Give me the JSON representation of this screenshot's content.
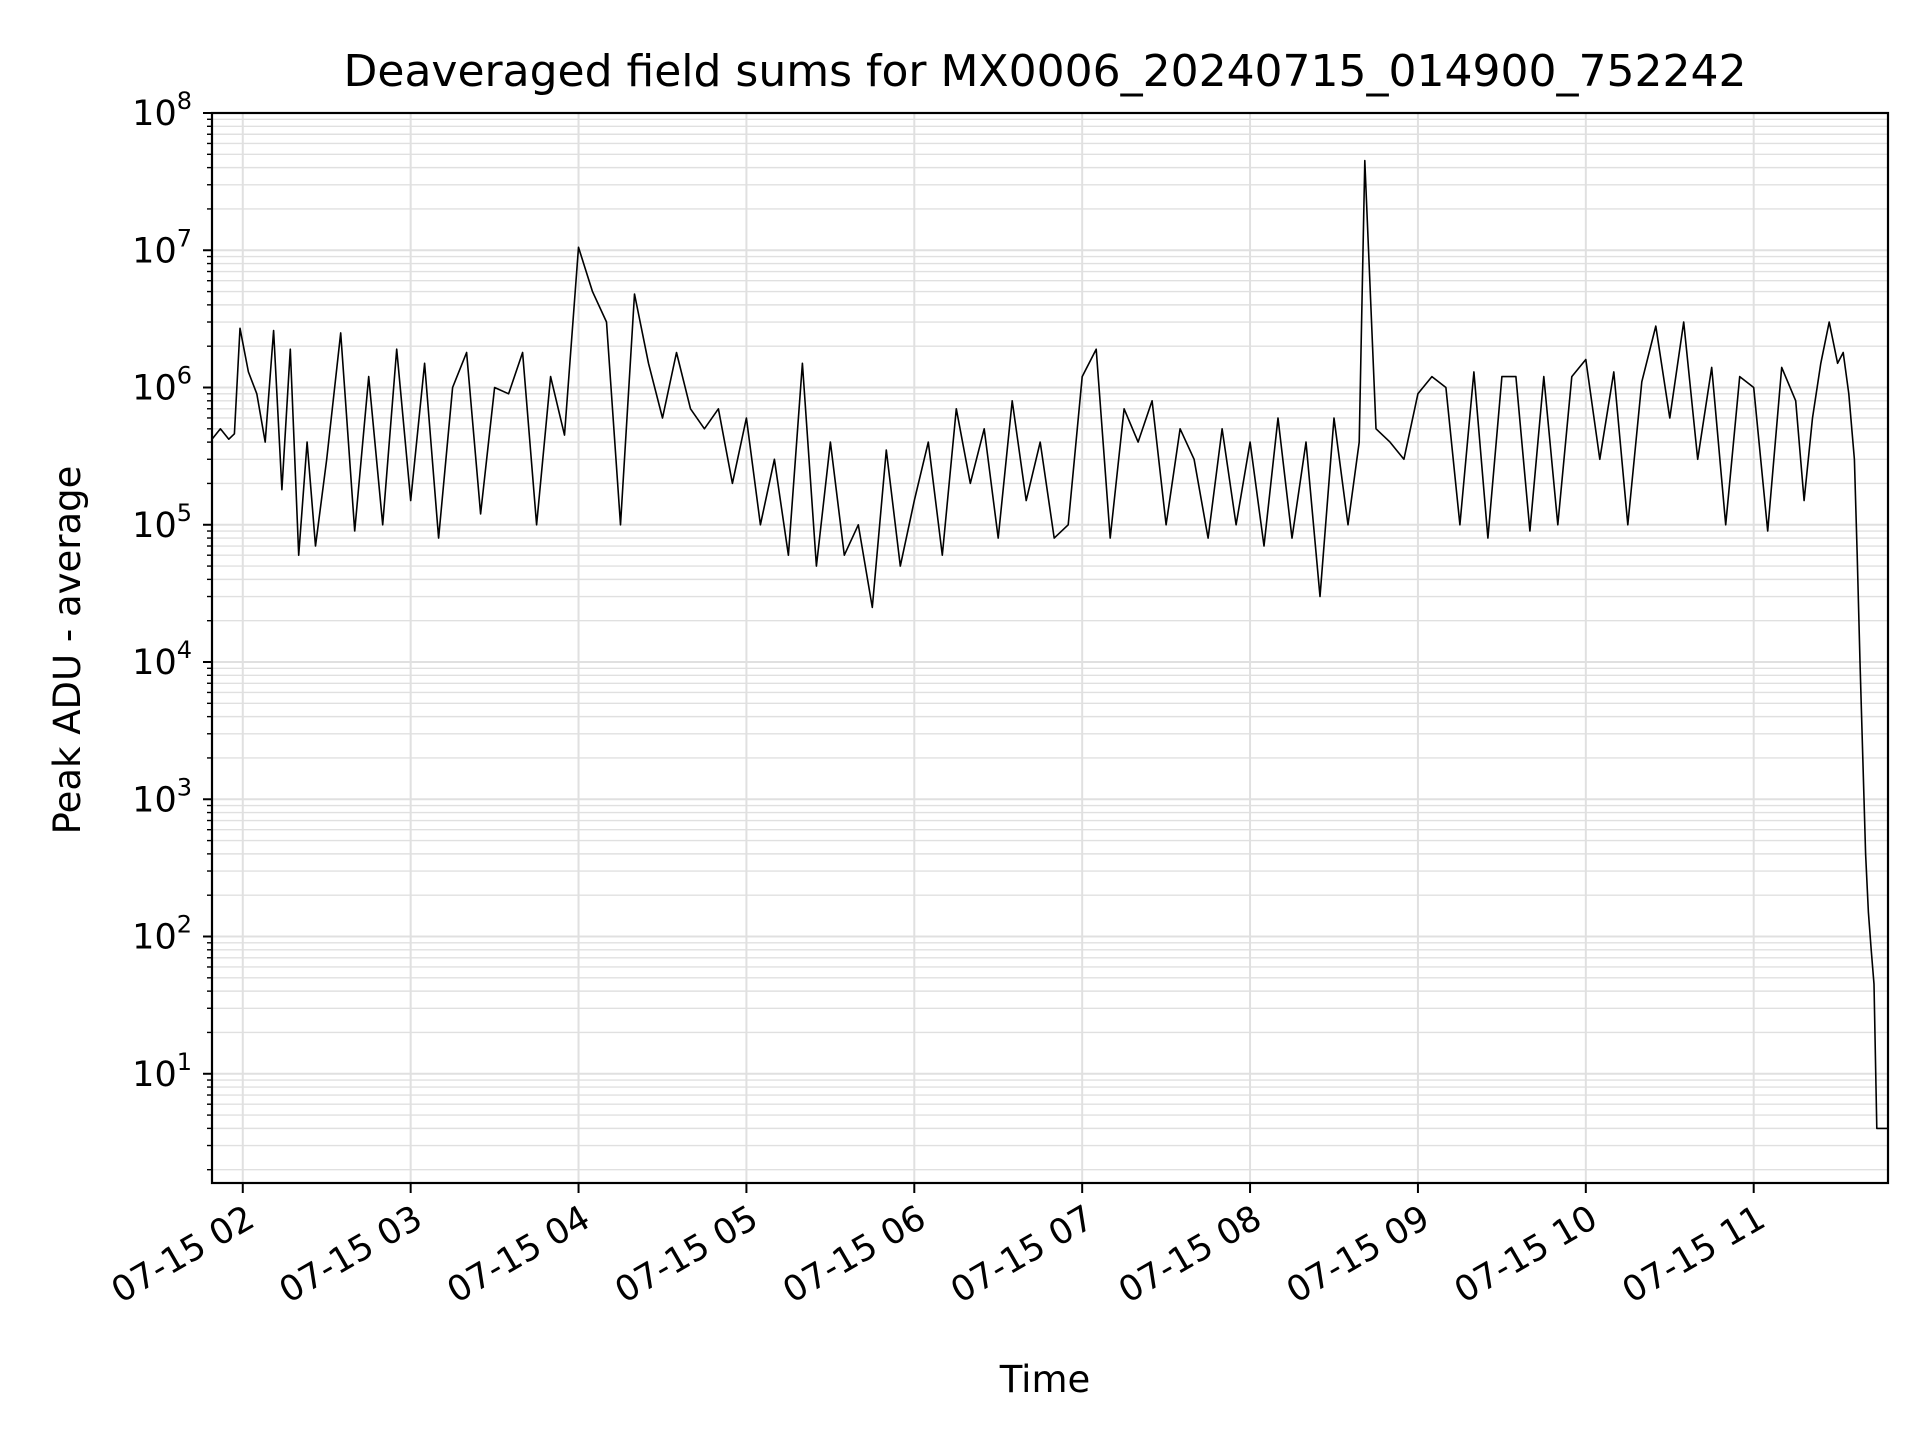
{
  "chart_data": {
    "type": "line",
    "title": "Deaveraged field sums for MX0006_20240715_014900_752242",
    "xlabel": "Time",
    "ylabel": "Peak ADU - average",
    "y_scale": "log",
    "ylim": [
      1.6,
      100000000
    ],
    "xlim": [
      "2024-07-15 01:49",
      "2024-07-15 11:48"
    ],
    "grid": true,
    "line_color": "#000000",
    "grid_color": "#e0e0e0",
    "x_ticks": [
      {
        "value": "2024-07-15 02:00",
        "label": "07-15 02"
      },
      {
        "value": "2024-07-15 03:00",
        "label": "07-15 03"
      },
      {
        "value": "2024-07-15 04:00",
        "label": "07-15 04"
      },
      {
        "value": "2024-07-15 05:00",
        "label": "07-15 05"
      },
      {
        "value": "2024-07-15 06:00",
        "label": "07-15 06"
      },
      {
        "value": "2024-07-15 07:00",
        "label": "07-15 07"
      },
      {
        "value": "2024-07-15 08:00",
        "label": "07-15 08"
      },
      {
        "value": "2024-07-15 09:00",
        "label": "07-15 09"
      },
      {
        "value": "2024-07-15 10:00",
        "label": "07-15 10"
      },
      {
        "value": "2024-07-15 11:00",
        "label": "07-15 11"
      }
    ],
    "y_ticks": [
      {
        "value": 10,
        "base": "10",
        "exp": "1"
      },
      {
        "value": 100,
        "base": "10",
        "exp": "2"
      },
      {
        "value": 1000,
        "base": "10",
        "exp": "3"
      },
      {
        "value": 10000,
        "base": "10",
        "exp": "4"
      },
      {
        "value": 100000,
        "base": "10",
        "exp": "5"
      },
      {
        "value": 1000000,
        "base": "10",
        "exp": "6"
      },
      {
        "value": 10000000,
        "base": "10",
        "exp": "7"
      },
      {
        "value": 100000000,
        "base": "10",
        "exp": "8"
      }
    ],
    "series": [
      {
        "x": [
          "2024-07-15 01:49",
          "2024-07-15 01:52",
          "2024-07-15 01:55",
          "2024-07-15 01:57",
          "2024-07-15 01:59",
          "2024-07-15 02:02",
          "2024-07-15 02:05",
          "2024-07-15 02:08",
          "2024-07-15 02:11",
          "2024-07-15 02:14",
          "2024-07-15 02:17",
          "2024-07-15 02:20",
          "2024-07-15 02:23",
          "2024-07-15 02:26",
          "2024-07-15 02:30",
          "2024-07-15 02:35",
          "2024-07-15 02:40",
          "2024-07-15 02:45",
          "2024-07-15 02:50",
          "2024-07-15 02:55",
          "2024-07-15 03:00",
          "2024-07-15 03:05",
          "2024-07-15 03:10",
          "2024-07-15 03:15",
          "2024-07-15 03:20",
          "2024-07-15 03:25",
          "2024-07-15 03:30",
          "2024-07-15 03:35",
          "2024-07-15 03:40",
          "2024-07-15 03:45",
          "2024-07-15 03:50",
          "2024-07-15 03:55",
          "2024-07-15 04:00",
          "2024-07-15 04:05",
          "2024-07-15 04:10",
          "2024-07-15 04:15",
          "2024-07-15 04:20",
          "2024-07-15 04:25",
          "2024-07-15 04:30",
          "2024-07-15 04:35",
          "2024-07-15 04:40",
          "2024-07-15 04:45",
          "2024-07-15 04:50",
          "2024-07-15 04:55",
          "2024-07-15 05:00",
          "2024-07-15 05:05",
          "2024-07-15 05:10",
          "2024-07-15 05:15",
          "2024-07-15 05:20",
          "2024-07-15 05:25",
          "2024-07-15 05:30",
          "2024-07-15 05:35",
          "2024-07-15 05:40",
          "2024-07-15 05:45",
          "2024-07-15 05:50",
          "2024-07-15 05:55",
          "2024-07-15 06:00",
          "2024-07-15 06:05",
          "2024-07-15 06:10",
          "2024-07-15 06:15",
          "2024-07-15 06:20",
          "2024-07-15 06:25",
          "2024-07-15 06:30",
          "2024-07-15 06:35",
          "2024-07-15 06:40",
          "2024-07-15 06:45",
          "2024-07-15 06:50",
          "2024-07-15 06:55",
          "2024-07-15 07:00",
          "2024-07-15 07:05",
          "2024-07-15 07:10",
          "2024-07-15 07:15",
          "2024-07-15 07:20",
          "2024-07-15 07:25",
          "2024-07-15 07:30",
          "2024-07-15 07:35",
          "2024-07-15 07:40",
          "2024-07-15 07:45",
          "2024-07-15 07:50",
          "2024-07-15 07:55",
          "2024-07-15 08:00",
          "2024-07-15 08:05",
          "2024-07-15 08:10",
          "2024-07-15 08:15",
          "2024-07-15 08:20",
          "2024-07-15 08:25",
          "2024-07-15 08:30",
          "2024-07-15 08:35",
          "2024-07-15 08:39",
          "2024-07-15 08:41",
          "2024-07-15 08:45",
          "2024-07-15 08:50",
          "2024-07-15 08:55",
          "2024-07-15 09:00",
          "2024-07-15 09:05",
          "2024-07-15 09:10",
          "2024-07-15 09:15",
          "2024-07-15 09:20",
          "2024-07-15 09:25",
          "2024-07-15 09:30",
          "2024-07-15 09:35",
          "2024-07-15 09:40",
          "2024-07-15 09:45",
          "2024-07-15 09:50",
          "2024-07-15 09:55",
          "2024-07-15 10:00",
          "2024-07-15 10:05",
          "2024-07-15 10:10",
          "2024-07-15 10:15",
          "2024-07-15 10:20",
          "2024-07-15 10:25",
          "2024-07-15 10:30",
          "2024-07-15 10:35",
          "2024-07-15 10:40",
          "2024-07-15 10:45",
          "2024-07-15 10:50",
          "2024-07-15 10:55",
          "2024-07-15 11:00",
          "2024-07-15 11:05",
          "2024-07-15 11:10",
          "2024-07-15 11:15",
          "2024-07-15 11:18",
          "2024-07-15 11:21",
          "2024-07-15 11:24",
          "2024-07-15 11:27",
          "2024-07-15 11:30",
          "2024-07-15 11:32",
          "2024-07-15 11:34",
          "2024-07-15 11:36",
          "2024-07-15 11:37",
          "2024-07-15 11:38",
          "2024-07-15 11:39",
          "2024-07-15 11:40",
          "2024-07-15 11:41",
          "2024-07-15 11:42",
          "2024-07-15 11:43",
          "2024-07-15 11:44",
          "2024-07-15 11:45",
          "2024-07-15 11:46",
          "2024-07-15 11:47",
          "2024-07-15 11:48"
        ],
        "values": [
          420000,
          500000,
          420000,
          460000,
          2700000,
          1300000,
          900000,
          400000,
          2600000,
          180000,
          1900000,
          60000,
          400000,
          70000,
          300000,
          2500000,
          90000,
          1200000,
          100000,
          1900000,
          150000,
          1500000,
          80000,
          1000000,
          1800000,
          120000,
          1000000,
          900000,
          1800000,
          100000,
          1200000,
          450000,
          10500000,
          5000000,
          3000000,
          100000,
          4800000,
          1500000,
          600000,
          1800000,
          700000,
          500000,
          700000,
          200000,
          600000,
          100000,
          300000,
          60000,
          1500000,
          50000,
          400000,
          60000,
          100000,
          25000,
          350000,
          50000,
          150000,
          400000,
          60000,
          700000,
          200000,
          500000,
          80000,
          800000,
          150000,
          400000,
          80000,
          100000,
          1200000,
          1900000,
          80000,
          700000,
          400000,
          800000,
          100000,
          500000,
          300000,
          80000,
          500000,
          100000,
          400000,
          70000,
          600000,
          80000,
          400000,
          30000,
          600000,
          100000,
          400000,
          45000000,
          500000,
          400000,
          300000,
          900000,
          1200000,
          1000000,
          100000,
          1300000,
          80000,
          1200000,
          1200000,
          90000,
          1200000,
          100000,
          1200000,
          1600000,
          300000,
          1300000,
          100000,
          1100000,
          2800000,
          600000,
          3000000,
          300000,
          1400000,
          100000,
          1200000,
          1000000,
          90000,
          1400000,
          800000,
          150000,
          600000,
          1500000,
          3000000,
          1500000,
          1800000,
          900000,
          300000,
          60000,
          10000,
          2000,
          400,
          150,
          80,
          45,
          4,
          4,
          4,
          4,
          4
        ]
      }
    ]
  }
}
